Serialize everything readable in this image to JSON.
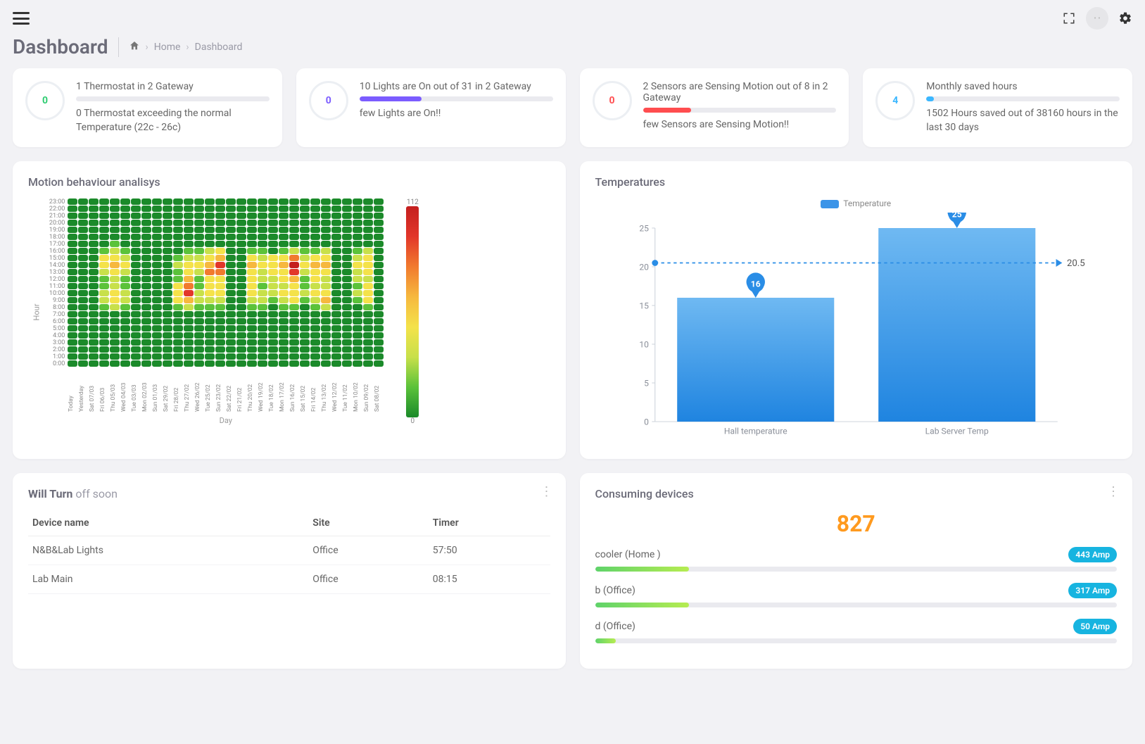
{
  "header": {
    "page_title": "Dashboard",
    "breadcrumb": {
      "home": "Home",
      "current": "Dashboard"
    }
  },
  "stat_cards": [
    {
      "value": "0",
      "value_color": "#2ecc71",
      "title": "1 Thermostat in 2 Gateway",
      "bar_fill_pct": 0,
      "bar_color": "#2ecc71",
      "desc": "0 Thermostat exceeding the normal Temperature (22c - 26c)"
    },
    {
      "value": "0",
      "value_color": "#7b5cff",
      "title": "10 Lights are On out of 31 in 2 Gateway",
      "bar_fill_pct": 32,
      "bar_color": "#7b5cff",
      "desc": "few Lights are On!!"
    },
    {
      "value": "0",
      "value_color": "#ff4d4f",
      "title": "2 Sensors are Sensing Motion out of 8 in 2 Gateway",
      "bar_fill_pct": 25,
      "bar_color": "#ff4d4f",
      "desc": "few Sensors are Sensing Motion!!"
    },
    {
      "value": "4",
      "value_color": "#3bb7ff",
      "title": "Monthly saved hours",
      "bar_fill_pct": 4,
      "bar_color": "#3bb7ff",
      "desc": "1502 Hours saved out of 38160 hours in the last 30 days"
    }
  ],
  "motion": {
    "title": "Motion behaviour analisys",
    "y_axis_label": "Hour",
    "x_axis_label": "Day",
    "hours": [
      "23:00",
      "22:00",
      "21:00",
      "20:00",
      "19:00",
      "18:00",
      "17:00",
      "16:00",
      "15:00",
      "14:00",
      "13:00",
      "12:00",
      "11:00",
      "10:00",
      "9:00",
      "8:00",
      "7:00",
      "6:00",
      "5:00",
      "4:00",
      "3:00",
      "2:00",
      "1:00",
      "0:00"
    ],
    "days": [
      "Today",
      "Yesterday",
      "Sat 07/03",
      "Fri 06/03",
      "Thu 05/03",
      "Wed 04/03",
      "Tue 03/03",
      "Mon 02/03",
      "Sun 01/03",
      "Sat 29/02",
      "Fri 28/02",
      "Thu 27/02",
      "Wed 26/02",
      "Tue 25/02",
      "Sun 23/02",
      "Sat 22/02",
      "Fri 21/02",
      "Thu 20/02",
      "Wed 19/02",
      "Tue 18/02",
      "Mon 17/02",
      "Sun 16/02",
      "Sat 15/02",
      "Fri 14/02",
      "Thu 13/02",
      "Wed 12/02",
      "Tue 11/02",
      "Mon 10/02",
      "Sun 09/02",
      "Sat 08/02"
    ],
    "legend_min": "0",
    "legend_max": "112",
    "legend_gradient": [
      "#1b8a2a",
      "#5bc23a",
      "#c8e04a",
      "#f4e24a",
      "#f6b83e",
      "#f17a2e",
      "#e2362a",
      "#c41f1f"
    ],
    "cell_low_color": "#1b8a2a",
    "data": [
      [
        0,
        0,
        0,
        0,
        0,
        0,
        0,
        0,
        0,
        0,
        0,
        0,
        0,
        0,
        0,
        0,
        0,
        0,
        0,
        0,
        0,
        0,
        0,
        0,
        0,
        0,
        0,
        0,
        0,
        0
      ],
      [
        0,
        0,
        0,
        0,
        0,
        0,
        0,
        0,
        0,
        0,
        0,
        0,
        0,
        0,
        0,
        0,
        0,
        0,
        0,
        0,
        0,
        0,
        0,
        0,
        0,
        0,
        0,
        0,
        0,
        0
      ],
      [
        0,
        0,
        0,
        0,
        0,
        0,
        0,
        0,
        0,
        0,
        0,
        0,
        0,
        0,
        0,
        0,
        0,
        0,
        0,
        0,
        0,
        0,
        0,
        0,
        0,
        0,
        0,
        0,
        0,
        0
      ],
      [
        0,
        0,
        0,
        0,
        0,
        0,
        0,
        0,
        0,
        0,
        0,
        0,
        0,
        0,
        0,
        0,
        0,
        0,
        0,
        0,
        0,
        0,
        0,
        0,
        0,
        0,
        0,
        0,
        0,
        0
      ],
      [
        0,
        0,
        0,
        0,
        0,
        0,
        0,
        0,
        0,
        0,
        0,
        0,
        0,
        0,
        0,
        0,
        0,
        0,
        0,
        0,
        0,
        0,
        0,
        0,
        0,
        0,
        0,
        0,
        0,
        0
      ],
      [
        0,
        0,
        0,
        0,
        0,
        0,
        0,
        0,
        0,
        0,
        0,
        0,
        0,
        0,
        0,
        0,
        0,
        0,
        0,
        0,
        0,
        0,
        0,
        0,
        0,
        0,
        0,
        0,
        0,
        0
      ],
      [
        0,
        0,
        0,
        1,
        2,
        0,
        0,
        0,
        0,
        0,
        0,
        0,
        0,
        0,
        0,
        0,
        0,
        1,
        0,
        0,
        0,
        0,
        0,
        0,
        0,
        0,
        0,
        0,
        0,
        0
      ],
      [
        0,
        0,
        0,
        2,
        3,
        2,
        0,
        0,
        0,
        0,
        1,
        2,
        2,
        3,
        4,
        0,
        0,
        2,
        2,
        1,
        2,
        3,
        2,
        2,
        3,
        0,
        0,
        2,
        3,
        0
      ],
      [
        0,
        0,
        0,
        4,
        5,
        3,
        0,
        0,
        0,
        0,
        2,
        3,
        3,
        5,
        6,
        0,
        0,
        4,
        3,
        4,
        5,
        7,
        3,
        4,
        5,
        0,
        0,
        3,
        4,
        0
      ],
      [
        0,
        0,
        0,
        5,
        6,
        4,
        0,
        0,
        0,
        0,
        3,
        4,
        4,
        6,
        8,
        0,
        0,
        6,
        4,
        5,
        6,
        9,
        4,
        6,
        6,
        0,
        0,
        4,
        5,
        0
      ],
      [
        0,
        0,
        0,
        3,
        4,
        3,
        0,
        0,
        0,
        0,
        2,
        5,
        3,
        7,
        7,
        0,
        0,
        5,
        3,
        4,
        5,
        8,
        3,
        5,
        4,
        0,
        0,
        3,
        4,
        0
      ],
      [
        0,
        0,
        0,
        2,
        3,
        2,
        0,
        0,
        0,
        0,
        2,
        6,
        2,
        5,
        5,
        0,
        0,
        4,
        3,
        3,
        4,
        6,
        2,
        4,
        3,
        0,
        0,
        3,
        3,
        0
      ],
      [
        0,
        0,
        0,
        2,
        3,
        2,
        0,
        0,
        0,
        0,
        4,
        7,
        2,
        4,
        4,
        0,
        0,
        4,
        2,
        3,
        3,
        5,
        2,
        3,
        3,
        0,
        0,
        2,
        4,
        0
      ],
      [
        0,
        0,
        0,
        3,
        4,
        3,
        0,
        0,
        0,
        0,
        5,
        8,
        3,
        4,
        4,
        0,
        0,
        4,
        3,
        3,
        4,
        5,
        3,
        4,
        5,
        0,
        0,
        3,
        5,
        0
      ],
      [
        0,
        0,
        0,
        3,
        4,
        3,
        0,
        0,
        0,
        0,
        4,
        6,
        3,
        3,
        3,
        0,
        0,
        3,
        3,
        2,
        3,
        4,
        2,
        3,
        6,
        0,
        0,
        2,
        4,
        0
      ],
      [
        0,
        0,
        0,
        2,
        3,
        2,
        0,
        0,
        0,
        0,
        2,
        3,
        2,
        2,
        2,
        0,
        0,
        2,
        2,
        1,
        2,
        2,
        1,
        2,
        3,
        0,
        0,
        1,
        2,
        0
      ],
      [
        0,
        0,
        0,
        0,
        0,
        0,
        0,
        0,
        0,
        0,
        0,
        0,
        0,
        0,
        0,
        0,
        0,
        0,
        0,
        0,
        0,
        0,
        0,
        0,
        0,
        0,
        0,
        0,
        0,
        0
      ],
      [
        0,
        0,
        0,
        0,
        0,
        0,
        0,
        0,
        0,
        0,
        0,
        0,
        0,
        0,
        0,
        0,
        0,
        0,
        0,
        0,
        0,
        0,
        0,
        0,
        0,
        0,
        0,
        0,
        0,
        0
      ],
      [
        0,
        0,
        0,
        0,
        0,
        0,
        0,
        0,
        0,
        0,
        0,
        0,
        0,
        0,
        0,
        0,
        0,
        0,
        0,
        0,
        0,
        0,
        0,
        0,
        0,
        0,
        0,
        0,
        0,
        0
      ],
      [
        0,
        0,
        0,
        0,
        0,
        0,
        0,
        0,
        0,
        0,
        0,
        0,
        0,
        0,
        0,
        0,
        0,
        0,
        0,
        0,
        0,
        0,
        0,
        0,
        0,
        0,
        0,
        0,
        0,
        0
      ],
      [
        0,
        0,
        0,
        0,
        0,
        0,
        0,
        0,
        0,
        0,
        0,
        0,
        0,
        0,
        0,
        0,
        0,
        0,
        0,
        0,
        0,
        0,
        0,
        0,
        0,
        0,
        0,
        0,
        0,
        0
      ],
      [
        0,
        0,
        0,
        0,
        0,
        0,
        0,
        0,
        0,
        0,
        0,
        0,
        0,
        0,
        0,
        0,
        0,
        0,
        0,
        0,
        0,
        0,
        0,
        0,
        0,
        0,
        0,
        0,
        0,
        0
      ],
      [
        0,
        0,
        0,
        0,
        0,
        0,
        0,
        0,
        0,
        0,
        0,
        0,
        0,
        0,
        0,
        0,
        0,
        0,
        0,
        0,
        0,
        0,
        0,
        0,
        0,
        0,
        0,
        0,
        0,
        0
      ],
      [
        0,
        0,
        0,
        0,
        0,
        0,
        0,
        0,
        0,
        0,
        0,
        0,
        0,
        0,
        0,
        0,
        0,
        0,
        0,
        0,
        0,
        0,
        0,
        0,
        0,
        0,
        0,
        0,
        0,
        0
      ]
    ],
    "value_max": 9
  },
  "temperatures": {
    "title": "Temperatures",
    "legend_label": "Temperature",
    "categories": [
      "Hall temperature",
      "Lab Server Temp"
    ],
    "values": [
      16,
      25
    ],
    "avg_line_value": 20.5,
    "avg_line_label": "20.5",
    "ylim": [
      0,
      25
    ],
    "ytick_step": 5,
    "bar_gradient_top": "#6fb9f2",
    "bar_gradient_bottom": "#1f84e0",
    "pin_color": "#2a8de6",
    "avg_line_color": "#2a8de6",
    "axis_color": "#cfd4dc",
    "tick_font_color": "#8a8f99"
  },
  "will_turn_off": {
    "title_strong": "Will Turn",
    "title_light": "off soon",
    "columns": [
      "Device name",
      "Site",
      "Timer"
    ],
    "rows": [
      [
        "N&B&Lab Lights",
        "Office",
        "57:50"
      ],
      [
        "Lab Main",
        "Office",
        "08:15"
      ]
    ]
  },
  "consuming": {
    "title": "Consuming devices",
    "total": "827",
    "total_color": "#ff9a1f",
    "max_amp": 443,
    "devices": [
      {
        "name": "cooler (Home )",
        "amp": 443,
        "badge_color": "#17b4e0",
        "bar_pct": 18
      },
      {
        "name": "b (Office)",
        "amp": 317,
        "badge_color": "#17b4e0",
        "bar_pct": 18
      },
      {
        "name": "d (Office)",
        "amp": 50,
        "badge_color": "#17b4e0",
        "bar_pct": 4
      }
    ],
    "amp_suffix": " Amp"
  }
}
